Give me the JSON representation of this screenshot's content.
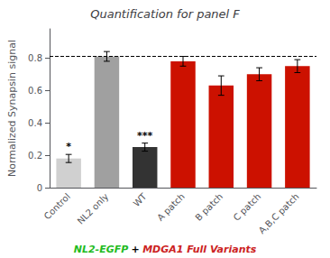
{
  "chart_data": {
    "type": "bar",
    "title": "Quantification for panel F",
    "ylabel": "Normalized Synapsin signal",
    "categories": [
      "Control",
      "NL2 only",
      "WT",
      "A patch",
      "B patch",
      "C patch",
      "A,B,C patch"
    ],
    "values": [
      0.18,
      0.81,
      0.25,
      0.78,
      0.63,
      0.7,
      0.75
    ],
    "errors": [
      0.025,
      0.03,
      0.025,
      0.03,
      0.06,
      0.04,
      0.04
    ],
    "colors": [
      "#d0d0d0",
      "#a0a0a0",
      "#333333",
      "#cc1100",
      "#cc1100",
      "#cc1100",
      "#cc1100"
    ],
    "reference_line": 0.81,
    "sig_labels": [
      "*",
      null,
      "***",
      null,
      null,
      null,
      null
    ],
    "caption": [
      {
        "text": "NL2-EGFP",
        "color": "#22bb22"
      },
      {
        "text": "+",
        "color": "#000000"
      },
      {
        "text": "MDGA1 Full Variants",
        "color": "#cc2222"
      }
    ],
    "ylim": [
      0,
      0.98
    ],
    "yticks": [
      0,
      0.2,
      0.4,
      0.6,
      0.8
    ],
    "grid": false
  }
}
